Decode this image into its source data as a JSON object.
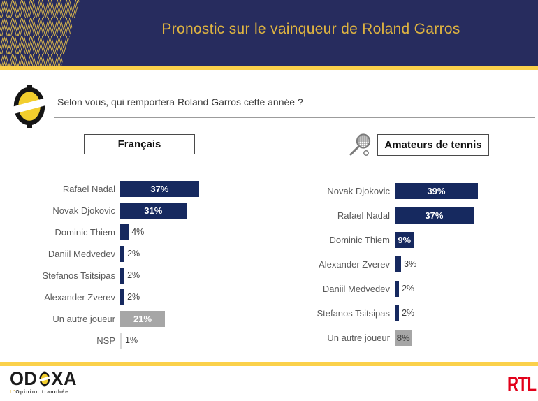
{
  "header": {
    "title": "Pronostic sur le vainqueur de Roland Garros"
  },
  "question": {
    "text": "Selon vous, qui remportera Roland Garros cette année ?"
  },
  "footer": {
    "odoxa_pre": "OD",
    "odoxa_post": "XA",
    "tagline_lead": "L'",
    "tagline_rest": "Opinion tranchée",
    "rtl": "RTL"
  },
  "colors": {
    "header_navy": "#272c5e",
    "title_gold": "#dfb440",
    "divider_gold": "#fbd14b",
    "pattern_gold": "#d9b64a",
    "bar_navy": "#16295f",
    "bar_gray": "#a6a6a6",
    "bar_lightgray": "#d9d9d9",
    "ball_yellow": "#f2ce2d",
    "rtl_red": "#e2001a"
  },
  "chart_data": [
    {
      "type": "bar",
      "orientation": "horizontal",
      "title": "Français",
      "categories": [
        "Rafael Nadal",
        "Novak Djokovic",
        "Dominic Thiem",
        "Daniil Medvedev",
        "Stefanos Tsitsipas",
        "Alexander Zverev",
        "Un autre joueur",
        "NSP"
      ],
      "values": [
        37,
        31,
        4,
        2,
        2,
        2,
        21,
        1
      ],
      "value_labels": [
        "37%",
        "31%",
        "4%",
        "2%",
        "2%",
        "2%",
        "21%",
        "1%"
      ],
      "bar_colors": [
        "#16295f",
        "#16295f",
        "#16295f",
        "#16295f",
        "#16295f",
        "#16295f",
        "#a6a6a6",
        "#d9d9d9"
      ],
      "label_inside": [
        true,
        true,
        false,
        false,
        false,
        false,
        true,
        false
      ],
      "value_label_colors": [
        "#ffffff",
        "#ffffff",
        "#3d3d3d",
        "#3d3d3d",
        "#3d3d3d",
        "#3d3d3d",
        "#ffffff",
        "#3d3d3d"
      ],
      "xlim": [
        0,
        40
      ],
      "grid": false,
      "legend": false
    },
    {
      "type": "bar",
      "orientation": "horizontal",
      "title": "Amateurs de tennis",
      "categories": [
        "Novak Djokovic",
        "Rafael Nadal",
        "Dominic Thiem",
        "Alexander Zverev",
        "Daniil Medvedev",
        "Stefanos Tsitsipas",
        "Un autre joueur"
      ],
      "values": [
        39,
        37,
        9,
        3,
        2,
        2,
        8
      ],
      "value_labels": [
        "39%",
        "37%",
        "9%",
        "3%",
        "2%",
        "2%",
        "8%"
      ],
      "bar_colors": [
        "#16295f",
        "#16295f",
        "#16295f",
        "#16295f",
        "#16295f",
        "#16295f",
        "#a6a6a6"
      ],
      "label_inside": [
        true,
        true,
        true,
        false,
        false,
        false,
        true
      ],
      "value_label_colors": [
        "#ffffff",
        "#ffffff",
        "#ffffff",
        "#3d3d3d",
        "#3d3d3d",
        "#3d3d3d",
        "#4a4a4a"
      ],
      "xlim": [
        0,
        40
      ],
      "grid": false,
      "legend": false
    }
  ]
}
